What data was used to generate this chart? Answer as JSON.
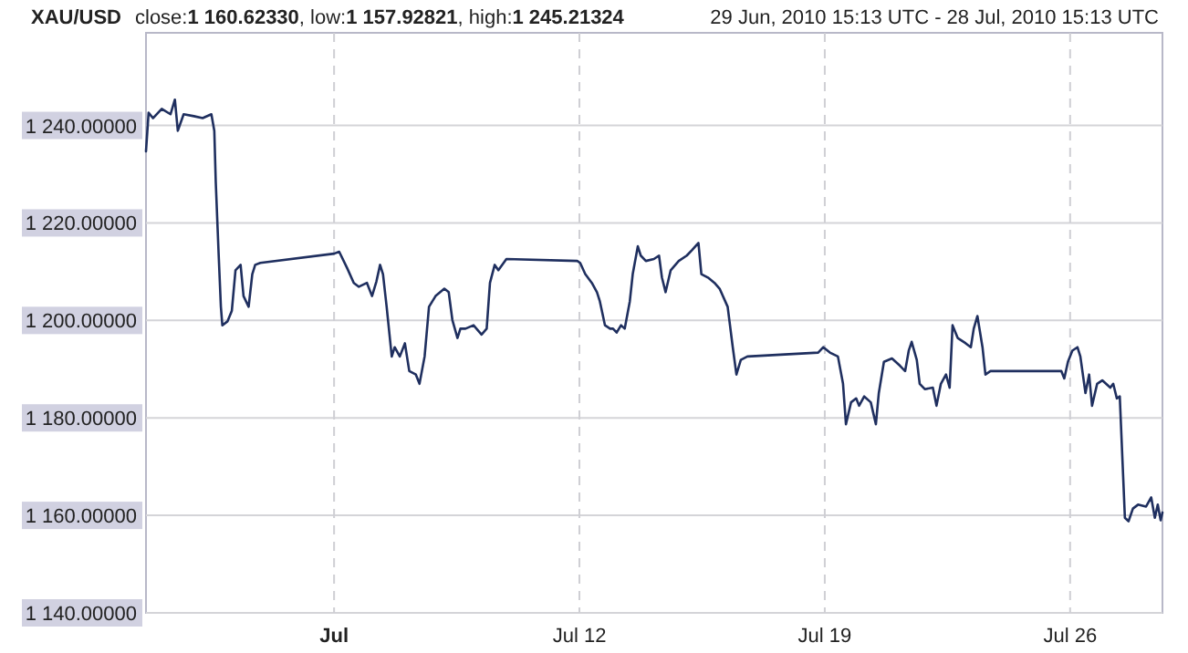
{
  "chart_data": {
    "type": "line",
    "title": "XAU/USD",
    "subtitle": "close:1 160.62330, low:1 157.92821, high:1 245.21324",
    "annotations": [
      "29 Jun, 2010 15:13 UTC - 28 Jul, 2010 15:13 UTC"
    ],
    "xlim": [
      "2010-06-29T15:13",
      "2010-07-28T15:13"
    ],
    "xticks": [
      {
        "value": "2010-07-05",
        "label": "Jul"
      },
      {
        "value": "2010-07-12",
        "label": "Jul 12"
      },
      {
        "value": "2010-07-19",
        "label": "Jul 19"
      },
      {
        "value": "2010-07-26",
        "label": "Jul 26"
      }
    ],
    "ylim": [
      1140,
      1259
    ],
    "yticks": [
      {
        "value": 1140,
        "label": "1 140.00000"
      },
      {
        "value": 1160,
        "label": "1 160.00000"
      },
      {
        "value": 1180,
        "label": "1 180.00000"
      },
      {
        "value": 1200,
        "label": "1 200.00000"
      },
      {
        "value": 1220,
        "label": "1 220.00000"
      },
      {
        "value": 1240,
        "label": "1 240.00000"
      }
    ],
    "grid": true,
    "marker": "none",
    "line_style": "solid",
    "series": [
      {
        "color": "#1f2f5f",
        "x": [
          "2010-06-29T15:13",
          "2010-06-29T17:00",
          "2010-06-29T20:00",
          "2010-06-30T02:00",
          "2010-06-30T08:00",
          "2010-06-30T11:00",
          "2010-06-30T13:00",
          "2010-06-30T17:00",
          "2010-07-01T00:00",
          "2010-07-01T06:00",
          "2010-07-01T12:00",
          "2010-07-01T14:00",
          "2010-07-01T15:00",
          "2010-07-01T17:00",
          "2010-07-01T18:30",
          "2010-07-01T19:30",
          "2010-07-01T23:00",
          "2010-07-02T02:00",
          "2010-07-02T04:30",
          "2010-07-02T08:00",
          "2010-07-02T10:00",
          "2010-07-02T13:30",
          "2010-07-02T16:00",
          "2010-07-02T18:00",
          "2010-07-02T21:30",
          "2010-07-05T00:00",
          "2010-07-05T03:30",
          "2010-07-05T09:00",
          "2010-07-05T13:30",
          "2010-07-05T17:00",
          "2010-07-05T22:30",
          "2010-07-06T02:00",
          "2010-07-06T05:00",
          "2010-07-06T07:30",
          "2010-07-06T09:30",
          "2010-07-06T12:00",
          "2010-07-06T15:30",
          "2010-07-06T17:30",
          "2010-07-06T21:00",
          "2010-07-07T00:30",
          "2010-07-07T03:30",
          "2010-07-07T08:00",
          "2010-07-07T10:30",
          "2010-07-07T14:00",
          "2010-07-07T17:00",
          "2010-07-07T21:30",
          "2010-07-08T03:30",
          "2010-07-08T06:30",
          "2010-07-08T09:00",
          "2010-07-08T12:30",
          "2010-07-08T14:30",
          "2010-07-08T18:00",
          "2010-07-08T23:30",
          "2010-07-09T05:00",
          "2010-07-09T08:30",
          "2010-07-09T10:45",
          "2010-07-09T14:00",
          "2010-07-09T16:30",
          "2010-07-09T22:00",
          "2010-07-11T22:30",
          "2010-07-12T00:30",
          "2010-07-12T04:00",
          "2010-07-12T08:30",
          "2010-07-12T12:00",
          "2010-07-12T14:00",
          "2010-07-12T17:30",
          "2010-07-12T21:00",
          "2010-07-12T23:00",
          "2010-07-13T01:30",
          "2010-07-13T04:30",
          "2010-07-13T07:00",
          "2010-07-13T10:30",
          "2010-07-13T12:30",
          "2010-07-13T16:00",
          "2010-07-13T18:00",
          "2010-07-13T21:30",
          "2010-07-14T03:00",
          "2010-07-14T06:30",
          "2010-07-14T08:30",
          "2010-07-14T11:00",
          "2010-07-14T14:30",
          "2010-07-14T20:00",
          "2010-07-15T01:30",
          "2010-07-15T05:00",
          "2010-07-15T09:30",
          "2010-07-15T11:30",
          "2010-07-15T16:00",
          "2010-07-15T20:30",
          "2010-07-16T00:00",
          "2010-07-16T05:30",
          "2010-07-16T09:00",
          "2010-07-16T11:30",
          "2010-07-16T14:30",
          "2010-07-16T19:00",
          "2010-07-18T19:30",
          "2010-07-18T23:00",
          "2010-07-19T03:30",
          "2010-07-19T09:00",
          "2010-07-19T12:30",
          "2010-07-19T14:30",
          "2010-07-19T18:00",
          "2010-07-19T21:30",
          "2010-07-19T23:30",
          "2010-07-20T03:00",
          "2010-07-20T07:30",
          "2010-07-20T11:00",
          "2010-07-20T13:00",
          "2010-07-20T16:30",
          "2010-07-20T22:00",
          "2010-07-21T03:30",
          "2010-07-21T07:00",
          "2010-07-21T09:30",
          "2010-07-21T11:30",
          "2010-07-21T15:00",
          "2010-07-21T17:00",
          "2010-07-21T20:30",
          "2010-07-22T02:00",
          "2010-07-22T04:30",
          "2010-07-22T07:30",
          "2010-07-22T11:00",
          "2010-07-22T13:30",
          "2010-07-22T15:30",
          "2010-07-22T19:00",
          "2010-07-23T00:30",
          "2010-07-23T04:00",
          "2010-07-23T06:00",
          "2010-07-23T08:30",
          "2010-07-23T12:00",
          "2010-07-23T14:00",
          "2010-07-23T17:30",
          "2010-07-23T23:00",
          "2010-07-25T18:00",
          "2010-07-25T20:00",
          "2010-07-25T22:30",
          "2010-07-26T01:30",
          "2010-07-26T05:00",
          "2010-07-26T07:00",
          "2010-07-26T10:30",
          "2010-07-26T13:00",
          "2010-07-26T15:00",
          "2010-07-26T18:30",
          "2010-07-26T22:00",
          "2010-07-27T03:30",
          "2010-07-27T05:30",
          "2010-07-27T08:00",
          "2010-07-27T10:00",
          "2010-07-27T13:30",
          "2010-07-27T16:00",
          "2010-07-27T19:00",
          "2010-07-27T22:30",
          "2010-07-28T04:00",
          "2010-07-28T07:30",
          "2010-07-28T10:00",
          "2010-07-28T12:00",
          "2010-07-28T14:00",
          "2010-07-28T15:13"
        ],
        "values": [
          1234.7,
          1242.6,
          1241.5,
          1243.4,
          1242.3,
          1245.3,
          1238.9,
          1242.3,
          1241.9,
          1241.5,
          1242.3,
          1238.9,
          1228.3,
          1213.3,
          1202.8,
          1199,
          1199.8,
          1202,
          1210.3,
          1211.4,
          1205,
          1202.8,
          1209.5,
          1211.4,
          1211.8,
          1213.7,
          1214.1,
          1210.7,
          1207.7,
          1206.9,
          1207.7,
          1205,
          1208,
          1211.4,
          1209.5,
          1202.8,
          1192.6,
          1194.5,
          1192.6,
          1195.3,
          1189.6,
          1188.9,
          1187,
          1192.6,
          1202.8,
          1205,
          1206.5,
          1205.8,
          1200.1,
          1196.4,
          1198.3,
          1198.3,
          1199,
          1197.1,
          1198.3,
          1207.7,
          1211.4,
          1210.3,
          1212.6,
          1212.2,
          1211.8,
          1209.5,
          1207.7,
          1205.8,
          1203.9,
          1199,
          1198.3,
          1198.3,
          1197.5,
          1199,
          1198.3,
          1203.9,
          1209.5,
          1215.2,
          1213.3,
          1212.2,
          1212.6,
          1213.3,
          1208.8,
          1205.8,
          1210.3,
          1212.2,
          1213.3,
          1214.4,
          1215.9,
          1209.5,
          1208.8,
          1207.7,
          1206.5,
          1202.8,
          1194.5,
          1188.9,
          1191.9,
          1192.6,
          1193.4,
          1194.5,
          1193.4,
          1192.6,
          1187,
          1178.7,
          1183.2,
          1184,
          1182.5,
          1184.4,
          1183.2,
          1178.7,
          1185.1,
          1191.5,
          1192.2,
          1190.7,
          1189.6,
          1193.8,
          1195.6,
          1191.9,
          1187,
          1185.9,
          1186.2,
          1182.5,
          1187,
          1188.9,
          1186.2,
          1199,
          1196.4,
          1195.3,
          1194.5,
          1198.3,
          1200.9,
          1194.5,
          1188.9,
          1189.6,
          1189.6,
          1189.6,
          1188.1,
          1191.5,
          1193.8,
          1194.5,
          1192.6,
          1185.1,
          1188.9,
          1182.5,
          1187,
          1187.7,
          1186.2,
          1187,
          1184,
          1184.4,
          1159.5,
          1158.8,
          1161.4,
          1162.2,
          1161.8,
          1163.7,
          1159.5,
          1162.2,
          1159,
          1160.6
        ]
      }
    ]
  }
}
